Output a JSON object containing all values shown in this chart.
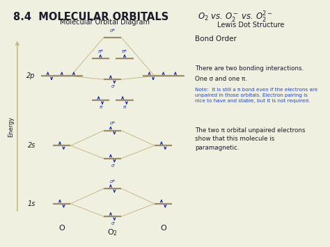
{
  "title": "8.4  MOLECULAR ORBITALS",
  "top_right": "O$_2$ vs. O$_2^-$ vs. O$_2^{2-}$",
  "subtitle_mo": "Molecular Orbital Diagram",
  "subtitle_lewis": "Lewis Dot Structure",
  "bond_order": "Bond Order",
  "bg": "#f0f0e0",
  "border_top": [
    "#1a2a5a",
    "#e8c020",
    "#4a4a5a",
    "#e07030",
    "#4a8a40"
  ],
  "border_bottom": [
    "#1a2a5a",
    "#e8c020",
    "#4a4a5a",
    "#e07030",
    "#4a8a40"
  ],
  "left_strip_color": "#4a4a5a",
  "orbital_color": "#9B8B6B",
  "diamond_color": "#c8b888",
  "mo_text_color": "#2233aa",
  "arrow_color": "#2233aa",
  "black": "#1a1a2a",
  "note_color": "#2244cc",
  "text1a": "There are two bonding interactions.",
  "text1b": "One σ and one π.",
  "note": "Note:  It is still a π bond even if the electrons are\nunpaired in those orbitals. Electron pairing is\nnice to have and stable, but it is not required.",
  "text3": "The two π orbital unpaired electrons\nshow that this molecule is\nparamagnetic.",
  "figsize": [
    4.74,
    3.55
  ],
  "dpi": 100
}
